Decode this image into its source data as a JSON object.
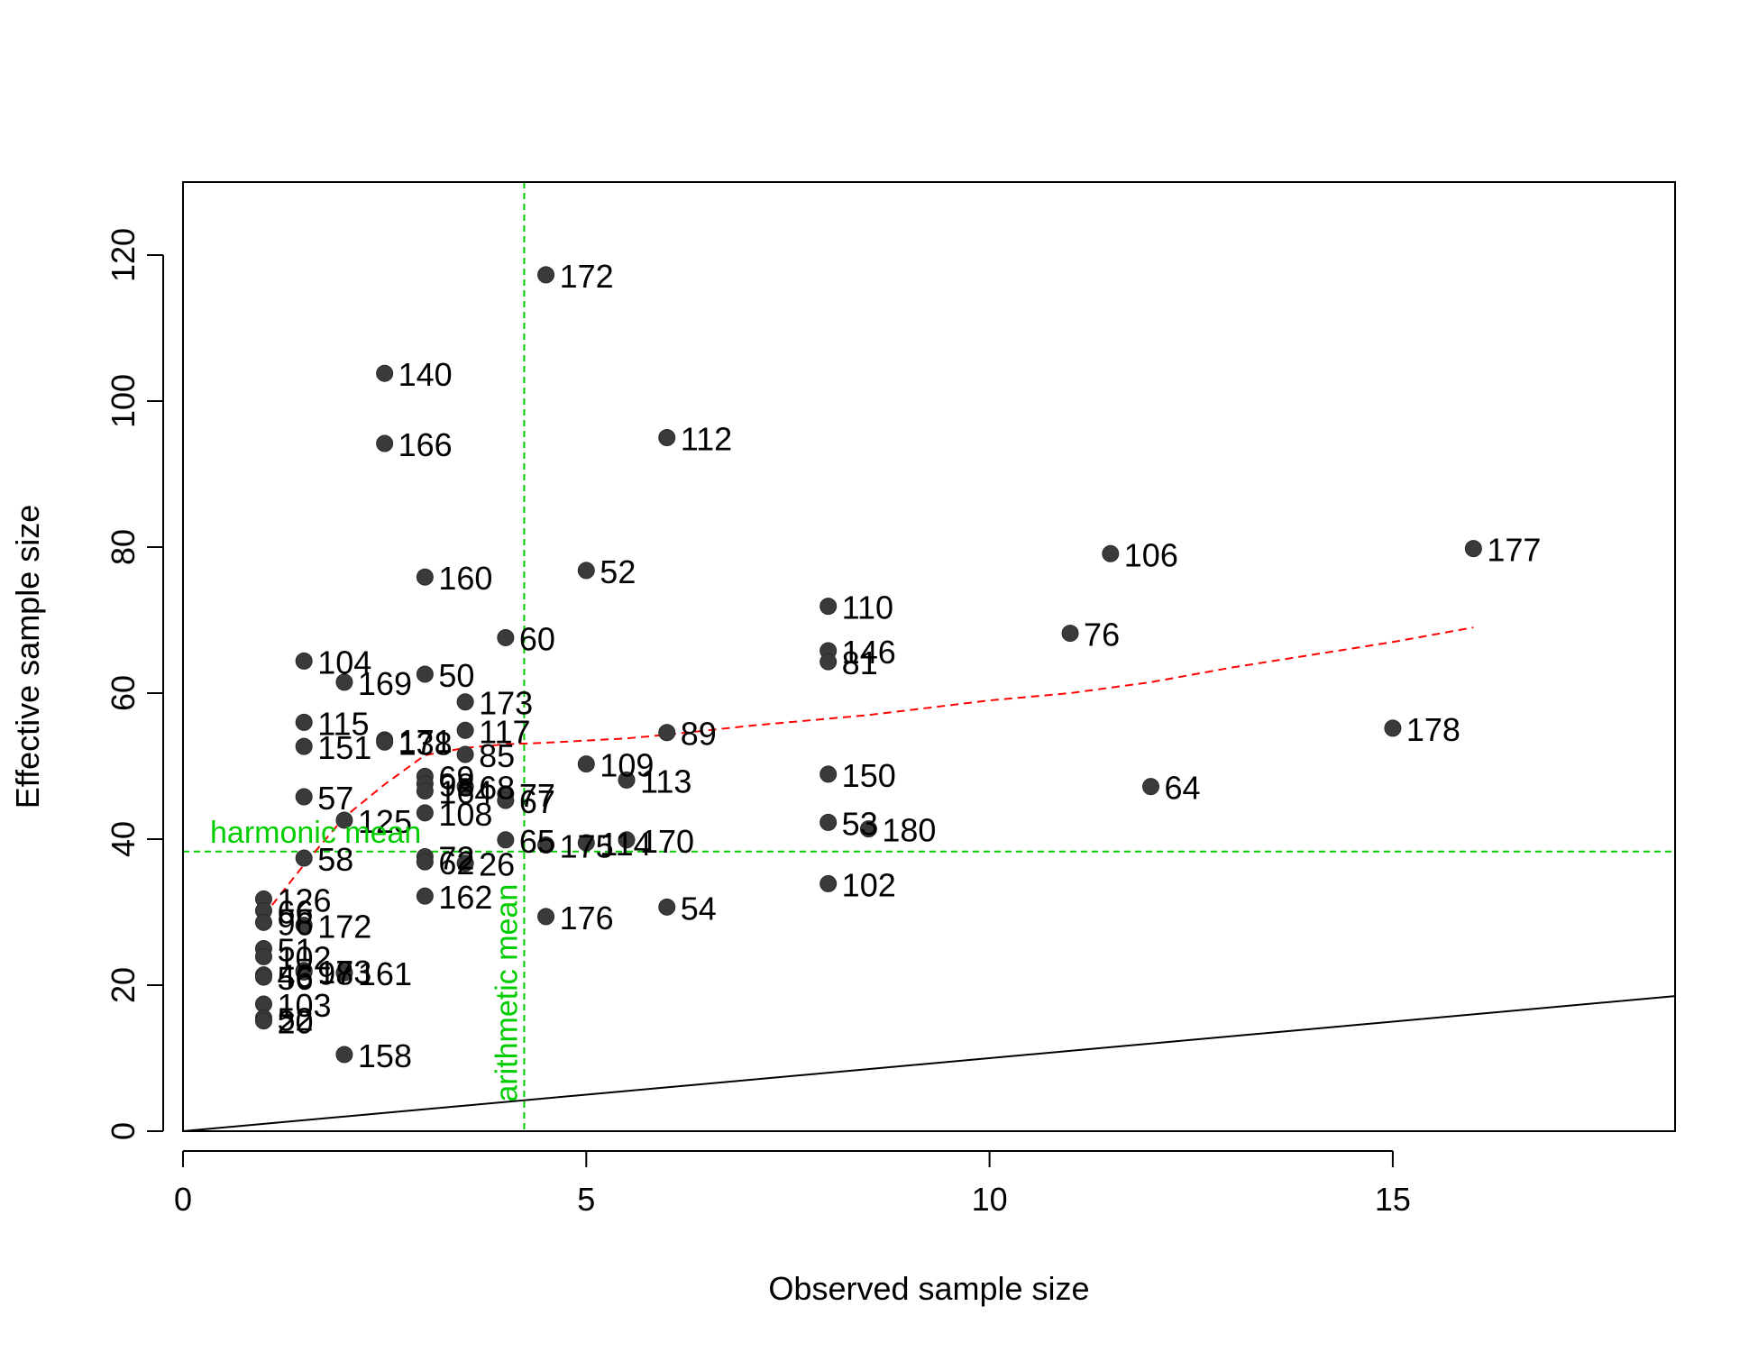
{
  "chart_data": {
    "type": "scatter",
    "title": "",
    "xlabel": "Observed sample size",
    "ylabel": "Effective sample size",
    "xlim": [
      0,
      18.5
    ],
    "ylim": [
      0,
      130
    ],
    "x_ticks": [
      0,
      5,
      10,
      15
    ],
    "x_tick_labels": [
      "0",
      "5",
      "10",
      "15"
    ],
    "y_ticks": [
      0,
      20,
      40,
      60,
      80,
      100,
      120
    ],
    "y_tick_labels": [
      "0",
      "20",
      "40",
      "60",
      "80",
      "100",
      "120"
    ],
    "grid": false,
    "legend": "none",
    "point_color": "#3a3a3a",
    "points": [
      {
        "label": "172",
        "x": 4.5,
        "y": 117.3
      },
      {
        "label": "140",
        "x": 2.5,
        "y": 103.8
      },
      {
        "label": "166",
        "x": 2.5,
        "y": 94.2
      },
      {
        "label": "112",
        "x": 6.0,
        "y": 95.0
      },
      {
        "label": "160",
        "x": 3.0,
        "y": 75.9
      },
      {
        "label": "52",
        "x": 5.0,
        "y": 76.8
      },
      {
        "label": "106",
        "x": 11.5,
        "y": 79.1
      },
      {
        "label": "177",
        "x": 16.0,
        "y": 79.8
      },
      {
        "label": "110",
        "x": 8.0,
        "y": 71.9
      },
      {
        "label": "60",
        "x": 4.0,
        "y": 67.6
      },
      {
        "label": "76",
        "x": 11.0,
        "y": 68.2
      },
      {
        "label": "146",
        "x": 8.0,
        "y": 65.8
      },
      {
        "label": "81",
        "x": 8.0,
        "y": 64.3
      },
      {
        "label": "104",
        "x": 1.5,
        "y": 64.4
      },
      {
        "label": "169",
        "x": 2.0,
        "y": 61.5
      },
      {
        "label": "50",
        "x": 3.0,
        "y": 62.6
      },
      {
        "label": "173",
        "x": 3.5,
        "y": 58.8
      },
      {
        "label": "115",
        "x": 1.5,
        "y": 56.0
      },
      {
        "label": "117",
        "x": 3.5,
        "y": 54.9
      },
      {
        "label": "178",
        "x": 15.0,
        "y": 55.2
      },
      {
        "label": "89",
        "x": 6.0,
        "y": 54.6
      },
      {
        "label": "151",
        "x": 1.5,
        "y": 52.7
      },
      {
        "label": "171",
        "x": 2.5,
        "y": 53.6
      },
      {
        "label": "138",
        "x": 2.5,
        "y": 53.3
      },
      {
        "label": "85",
        "x": 3.5,
        "y": 51.6
      },
      {
        "label": "109",
        "x": 5.0,
        "y": 50.3
      },
      {
        "label": "113",
        "x": 5.5,
        "y": 48.1
      },
      {
        "label": "150",
        "x": 8.0,
        "y": 48.9
      },
      {
        "label": "69",
        "x": 3.0,
        "y": 48.6
      },
      {
        "label": "98",
        "x": 3.0,
        "y": 47.6
      },
      {
        "label": "68",
        "x": 3.5,
        "y": 47.2
      },
      {
        "label": "64",
        "x": 12.0,
        "y": 47.2
      },
      {
        "label": "164",
        "x": 3.0,
        "y": 46.6
      },
      {
        "label": "77",
        "x": 4.0,
        "y": 46.2
      },
      {
        "label": "67",
        "x": 4.0,
        "y": 45.3
      },
      {
        "label": "57",
        "x": 1.5,
        "y": 45.8
      },
      {
        "label": "108",
        "x": 3.0,
        "y": 43.6
      },
      {
        "label": "125",
        "x": 2.0,
        "y": 42.6
      },
      {
        "label": "53",
        "x": 8.0,
        "y": 42.3
      },
      {
        "label": "180",
        "x": 8.5,
        "y": 41.4
      },
      {
        "label": "65",
        "x": 4.0,
        "y": 39.9
      },
      {
        "label": "175",
        "x": 4.5,
        "y": 39.2
      },
      {
        "label": "114",
        "x": 5.0,
        "y": 39.5
      },
      {
        "label": "170",
        "x": 5.5,
        "y": 39.9
      },
      {
        "label": "58",
        "x": 1.5,
        "y": 37.4
      },
      {
        "label": "72",
        "x": 3.0,
        "y": 37.6
      },
      {
        "label": "62",
        "x": 3.0,
        "y": 36.9
      },
      {
        "label": "26",
        "x": 3.5,
        "y": 36.7
      },
      {
        "label": "102",
        "x": 8.0,
        "y": 33.9
      },
      {
        "label": "162",
        "x": 3.0,
        "y": 32.2
      },
      {
        "label": "54",
        "x": 6.0,
        "y": 30.7
      },
      {
        "label": "176",
        "x": 4.5,
        "y": 29.4
      },
      {
        "label": "126",
        "x": 1.0,
        "y": 31.8
      },
      {
        "label": "66",
        "x": 1.0,
        "y": 30.2
      },
      {
        "label": "96",
        "x": 1.0,
        "y": 28.6
      },
      {
        "label": "172",
        "x": 1.5,
        "y": 28.2
      },
      {
        "label": "51",
        "x": 1.0,
        "y": 25.0
      },
      {
        "label": "102",
        "x": 1.0,
        "y": 23.9
      },
      {
        "label": "161",
        "x": 2.0,
        "y": 21.7
      },
      {
        "label": "173",
        "x": 1.5,
        "y": 22.0
      },
      {
        "label": "98",
        "x": 1.5,
        "y": 21.8
      },
      {
        "label": "46",
        "x": 1.0,
        "y": 21.4
      },
      {
        "label": "56",
        "x": 1.0,
        "y": 21.1
      },
      {
        "label": "103",
        "x": 1.0,
        "y": 17.4
      },
      {
        "label": "52",
        "x": 1.0,
        "y": 15.5
      },
      {
        "label": "20",
        "x": 1.0,
        "y": 15.1
      },
      {
        "label": "158",
        "x": 2.0,
        "y": 10.5
      }
    ],
    "smooth_line": {
      "color": "#ff0000",
      "x": [
        1.0,
        1.5,
        2.0,
        2.5,
        3.0,
        3.5,
        4.0,
        4.5,
        5.0,
        5.5,
        6.0,
        7.0,
        8.0,
        8.5,
        10.0,
        11.0,
        12.0,
        13.0,
        15.0,
        16.0
      ],
      "y": [
        29.5,
        36.5,
        43.0,
        47.5,
        51.5,
        52.5,
        53.0,
        53.2,
        53.5,
        53.8,
        54.3,
        55.5,
        56.5,
        57.0,
        59.0,
        60.0,
        61.5,
        63.5,
        67.0,
        69.0
      ]
    },
    "identity_line": {
      "color": "#000000",
      "x": [
        0,
        18.5
      ],
      "y": [
        0,
        18.5
      ]
    },
    "reference_lines": {
      "color": "#00cc00",
      "harmonic_mean": {
        "label": "harmonic mean",
        "y": 38.3
      },
      "arithmetic_mean": {
        "label": "arithmetic mean",
        "x": 4.23
      }
    }
  }
}
